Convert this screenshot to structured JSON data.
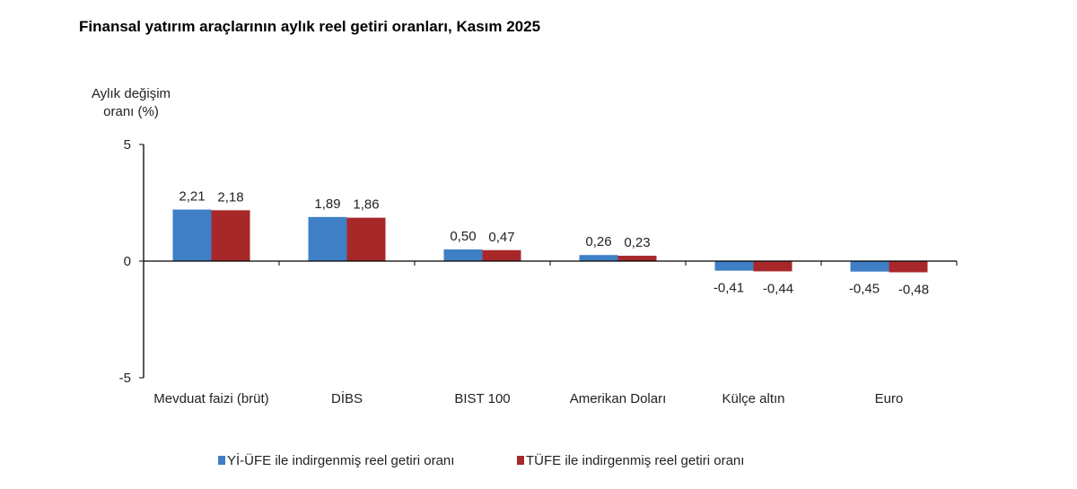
{
  "title": "Finansal yatırım araçlarının aylık reel getiri oranları, Kasım 2025",
  "chart_data": {
    "type": "bar",
    "title": "Finansal yatırım araçlarının aylık reel getiri oranları, Kasım 2025",
    "ylabel_lines": [
      "Aylık değişim",
      "oranı (%)"
    ],
    "xlabel": "",
    "categories": [
      "Mevduat faizi (brüt)",
      "DİBS",
      "BIST 100",
      "Amerikan Doları",
      "Külçe altın",
      "Euro"
    ],
    "series": [
      {
        "name": "Yİ-ÜFE ile indirgenmiş reel getiri oranı",
        "color": "#3f7fc6",
        "values": [
          2.21,
          1.89,
          0.5,
          0.26,
          -0.41,
          -0.45
        ],
        "labels": [
          "2,21",
          "1,89",
          "0,50",
          "0,26",
          "-0,41",
          "-0,45"
        ]
      },
      {
        "name": "TÜFE ile indirgenmiş reel getiri oranı",
        "color": "#a8282a",
        "values": [
          2.18,
          1.86,
          0.47,
          0.23,
          -0.44,
          -0.48
        ],
        "labels": [
          "2,18",
          "1,86",
          "0,47",
          "0,23",
          "-0,44",
          "-0,48"
        ]
      }
    ],
    "ylim": [
      -5,
      5
    ],
    "yticks": [
      5,
      0,
      -5
    ],
    "ytick_labels": [
      "5",
      "0",
      "-5"
    ],
    "grid": false,
    "legend_placement": "bottom"
  }
}
